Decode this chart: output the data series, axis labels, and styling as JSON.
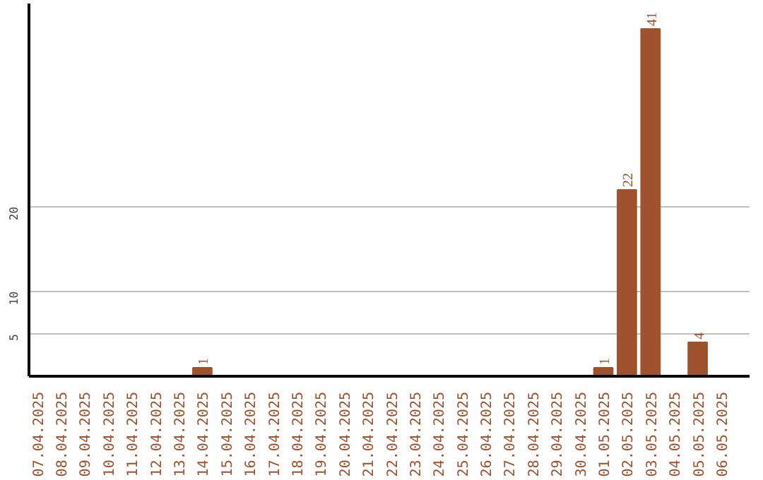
{
  "chart_data": {
    "type": "bar",
    "categories": [
      "07.04.2025",
      "08.04.2025",
      "09.04.2025",
      "10.04.2025",
      "11.04.2025",
      "12.04.2025",
      "13.04.2025",
      "14.04.2025",
      "15.04.2025",
      "16.04.2025",
      "17.04.2025",
      "18.04.2025",
      "19.04.2025",
      "20.04.2025",
      "21.04.2025",
      "22.04.2025",
      "23.04.2025",
      "24.04.2025",
      "25.04.2025",
      "26.04.2025",
      "27.04.2025",
      "28.04.2025",
      "29.04.2025",
      "30.04.2025",
      "01.05.2025",
      "02.05.2025",
      "03.05.2025",
      "04.05.2025",
      "05.05.2025",
      "06.05.2025"
    ],
    "values": [
      0,
      0,
      0,
      0,
      0,
      0,
      0,
      1,
      0,
      0,
      0,
      0,
      0,
      0,
      0,
      0,
      0,
      0,
      0,
      0,
      0,
      0,
      0,
      0,
      1,
      22,
      41,
      0,
      4,
      0
    ],
    "value_labels": [
      null,
      null,
      null,
      null,
      null,
      null,
      null,
      "1",
      null,
      null,
      null,
      null,
      null,
      null,
      null,
      null,
      null,
      null,
      null,
      null,
      null,
      null,
      null,
      null,
      "1",
      "22",
      "41",
      null,
      "4",
      null
    ],
    "color": "#a0522d",
    "ylim": [
      0,
      44
    ],
    "yticks": [
      5,
      10,
      20
    ],
    "grid": "y"
  }
}
